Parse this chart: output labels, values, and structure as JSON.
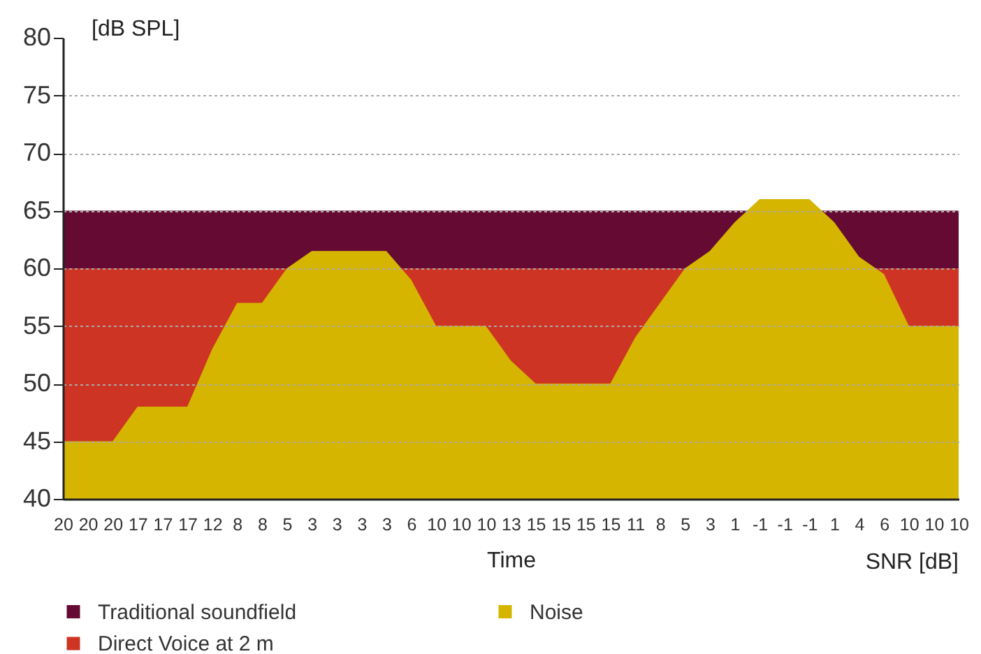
{
  "chart_data": {
    "type": "area",
    "ylabel": "[dB SPL]",
    "xlabel": "Time",
    "annotations": [
      "SNR [dB]"
    ],
    "categories": [
      "20",
      "20",
      "20",
      "17",
      "17",
      "17",
      "12",
      "8",
      "8",
      "5",
      "3",
      "3",
      "3",
      "3",
      "6",
      "10",
      "10",
      "10",
      "13",
      "15",
      "15",
      "15",
      "15",
      "11",
      "8",
      "5",
      "3",
      "1",
      "-1",
      "-1",
      "-1",
      "1",
      "4",
      "6",
      "10",
      "10",
      "10"
    ],
    "series": [
      {
        "name": "Traditional soundfield",
        "color": "#650a33",
        "values": [
          65,
          65,
          65,
          65,
          65,
          65,
          65,
          65,
          65,
          65,
          65,
          65,
          65,
          65,
          65,
          65,
          65,
          65,
          65,
          65,
          65,
          65,
          65,
          65,
          65,
          65,
          65,
          65,
          null,
          null,
          null,
          65,
          65,
          65,
          65,
          65,
          65
        ]
      },
      {
        "name": "Direct Voice at 2 m",
        "color": "#cd3424",
        "values": [
          60,
          60,
          60,
          60,
          60,
          60,
          60,
          60,
          60,
          60,
          null,
          null,
          null,
          null,
          60,
          60,
          60,
          60,
          60,
          60,
          60,
          60,
          60,
          60,
          60,
          60,
          null,
          null,
          null,
          null,
          null,
          null,
          null,
          60,
          60,
          60,
          60
        ]
      },
      {
        "name": "Noise",
        "color": "#d6b500",
        "values": [
          45,
          45,
          45,
          48,
          48,
          48,
          53,
          57,
          57,
          60,
          61.5,
          61.5,
          61.5,
          61.5,
          59,
          55,
          55,
          55,
          52,
          50,
          50,
          50,
          50,
          54,
          57,
          60,
          61.5,
          64,
          66,
          66,
          66,
          64,
          61,
          59.5,
          55,
          55,
          55
        ]
      }
    ],
    "ylim": [
      40,
      80
    ],
    "yticks": [
      40,
      45,
      50,
      55,
      60,
      65,
      70,
      75,
      80
    ],
    "grid": "y",
    "legend": "bottom left"
  }
}
